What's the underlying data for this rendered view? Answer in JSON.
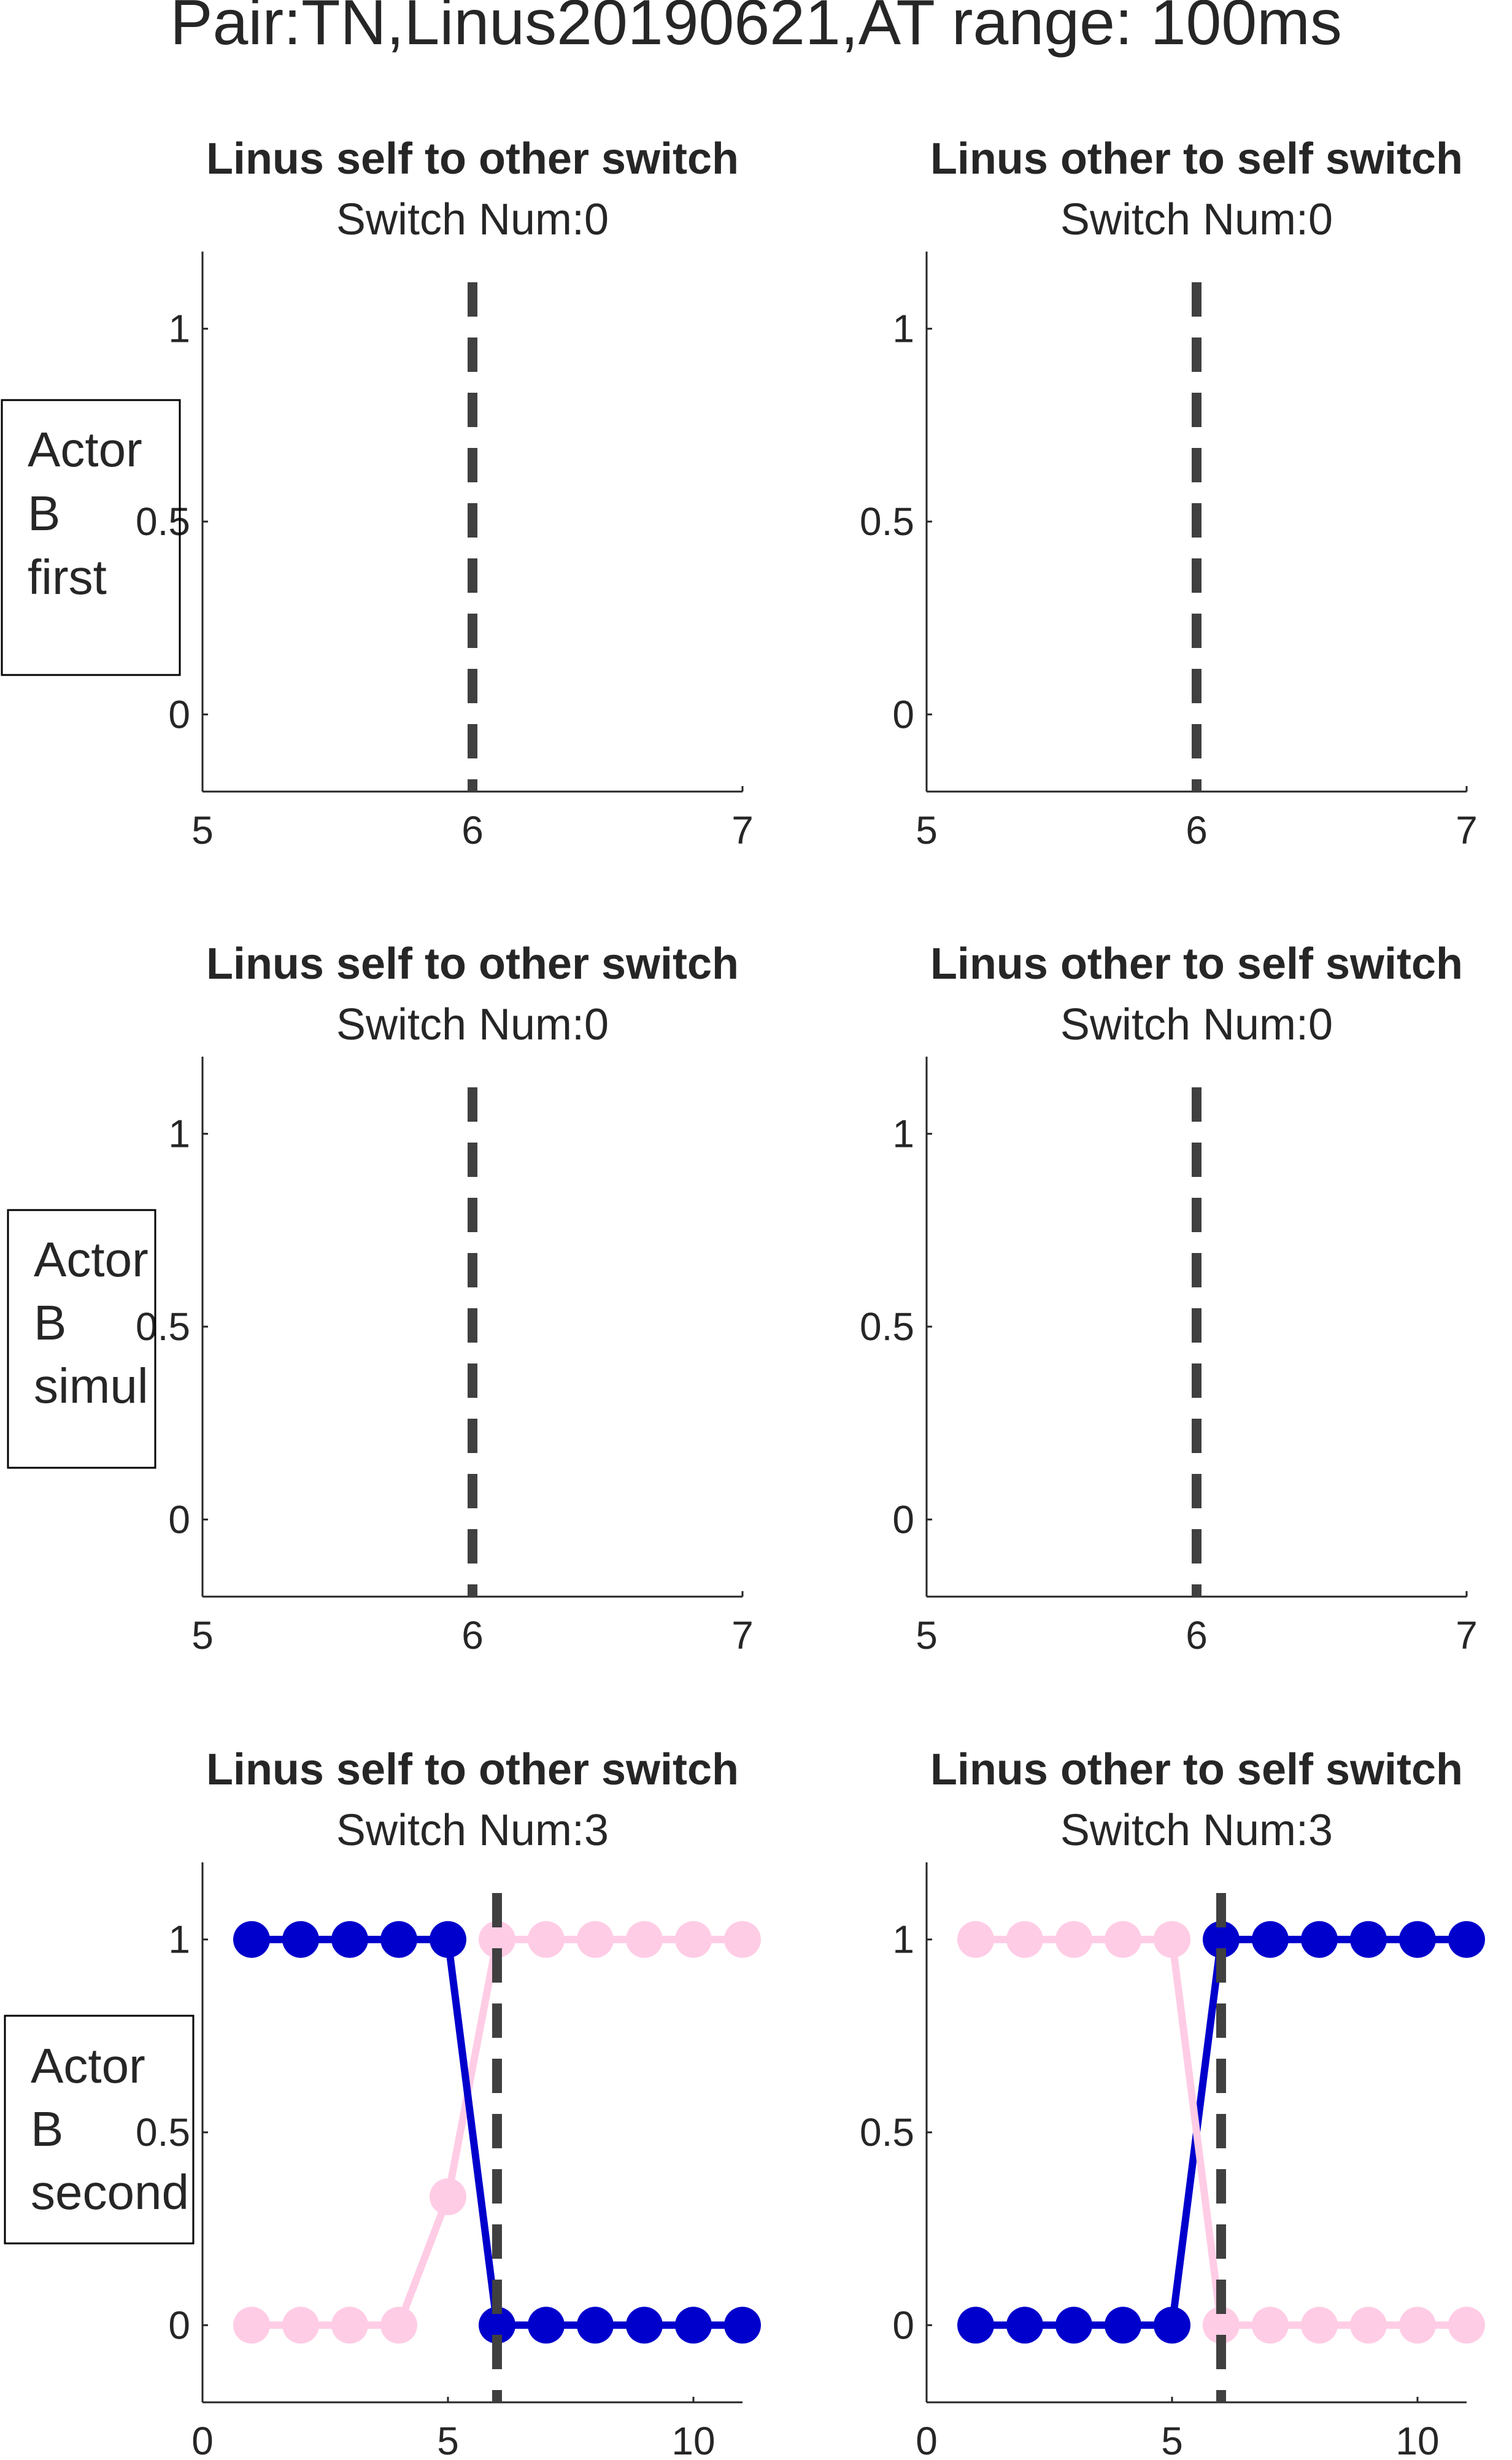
{
  "figure": {
    "title": "Pair:TN,Linus20190621,AT range: 100ms"
  },
  "colors": {
    "dashed_line": "#404040",
    "series_blue": "#0000cc",
    "series_pink": "#ffcce5",
    "axis": "#262626"
  },
  "chart_data": [
    {
      "type": "line",
      "row": 0,
      "col": 0,
      "title": "Linus self to other switch",
      "subtitle": "Switch Num:0",
      "row_label": [
        "Actor",
        "B",
        "first"
      ],
      "xlim": [
        5,
        7
      ],
      "ylim": [
        -0.2,
        1.2
      ],
      "xticks": [
        5,
        6,
        7
      ],
      "yticks": [
        0,
        0.5,
        1
      ],
      "xtick_labels": [
        "5",
        "6",
        "7"
      ],
      "ytick_labels": [
        "0",
        "0.5",
        "1"
      ],
      "vline": 6,
      "series": []
    },
    {
      "type": "line",
      "row": 0,
      "col": 1,
      "title": "Linus other to self switch",
      "subtitle": "Switch Num:0",
      "xlim": [
        5,
        7
      ],
      "ylim": [
        -0.2,
        1.2
      ],
      "xticks": [
        5,
        6,
        7
      ],
      "yticks": [
        0,
        0.5,
        1
      ],
      "xtick_labels": [
        "5",
        "6",
        "7"
      ],
      "ytick_labels": [
        "0",
        "0.5",
        "1"
      ],
      "vline": 6,
      "series": []
    },
    {
      "type": "line",
      "row": 1,
      "col": 0,
      "title": "Linus self to other switch",
      "subtitle": "Switch Num:0",
      "row_label": [
        "Actor",
        "B",
        "simul"
      ],
      "xlim": [
        5,
        7
      ],
      "ylim": [
        -0.2,
        1.2
      ],
      "xticks": [
        5,
        6,
        7
      ],
      "yticks": [
        0,
        0.5,
        1
      ],
      "xtick_labels": [
        "5",
        "6",
        "7"
      ],
      "ytick_labels": [
        "0",
        "0.5",
        "1"
      ],
      "vline": 6,
      "series": []
    },
    {
      "type": "line",
      "row": 1,
      "col": 1,
      "title": "Linus other to self switch",
      "subtitle": "Switch Num:0",
      "xlim": [
        5,
        7
      ],
      "ylim": [
        -0.2,
        1.2
      ],
      "xticks": [
        5,
        6,
        7
      ],
      "yticks": [
        0,
        0.5,
        1
      ],
      "xtick_labels": [
        "5",
        "6",
        "7"
      ],
      "ytick_labels": [
        "0",
        "0.5",
        "1"
      ],
      "vline": 6,
      "series": []
    },
    {
      "type": "line",
      "row": 2,
      "col": 0,
      "title": "Linus self to other switch",
      "subtitle": "Switch Num:3",
      "row_label": [
        "Actor",
        "B",
        "second"
      ],
      "xlim": [
        0,
        11
      ],
      "ylim": [
        -0.2,
        1.2
      ],
      "xticks": [
        0,
        5,
        10
      ],
      "yticks": [
        0,
        0.5,
        1
      ],
      "xtick_labels": [
        "0",
        "5",
        "10"
      ],
      "ytick_labels": [
        "0",
        "0.5",
        "1"
      ],
      "vline": 6,
      "series": [
        {
          "color": "#ffcce5",
          "x": [
            1,
            2,
            3,
            4,
            5,
            6,
            7,
            8,
            9,
            10,
            11
          ],
          "y": [
            0,
            0,
            0,
            0,
            0.333,
            1,
            1,
            1,
            1,
            1,
            1
          ]
        },
        {
          "color": "#0000cc",
          "x": [
            1,
            2,
            3,
            4,
            5,
            6,
            7,
            8,
            9,
            10,
            11
          ],
          "y": [
            1,
            1,
            1,
            1,
            1,
            0,
            0,
            0,
            0,
            0,
            0
          ]
        }
      ]
    },
    {
      "type": "line",
      "row": 2,
      "col": 1,
      "title": "Linus other to self switch",
      "subtitle": "Switch Num:3",
      "xlim": [
        0,
        11
      ],
      "ylim": [
        -0.2,
        1.2
      ],
      "xticks": [
        0,
        5,
        10
      ],
      "yticks": [
        0,
        0.5,
        1
      ],
      "xtick_labels": [
        "0",
        "5",
        "10"
      ],
      "ytick_labels": [
        "0",
        "0.5",
        "1"
      ],
      "vline": 6,
      "series": [
        {
          "color": "#0000cc",
          "x": [
            1,
            2,
            3,
            4,
            5,
            6,
            7,
            8,
            9,
            10,
            11
          ],
          "y": [
            0,
            0,
            0,
            0,
            0,
            1,
            1,
            1,
            1,
            1,
            1
          ]
        },
        {
          "color": "#ffcce5",
          "x": [
            1,
            2,
            3,
            4,
            5,
            6,
            7,
            8,
            9,
            10,
            11
          ],
          "y": [
            1,
            1,
            1,
            1,
            1,
            0,
            0,
            0,
            0,
            0,
            0
          ]
        }
      ]
    }
  ]
}
